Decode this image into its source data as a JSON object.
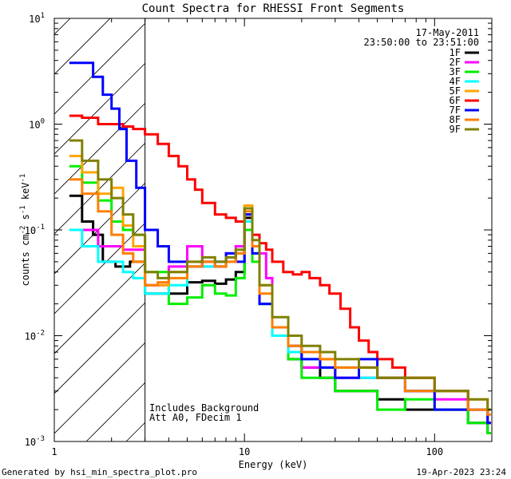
{
  "chart_data": {
    "type": "line",
    "title": "Count Spectra for RHESSI Front Segments",
    "xlabel": "Energy (keV)",
    "ylabel_parts": [
      "counts cm",
      "-2",
      " s",
      "-1",
      " keV",
      "-1"
    ],
    "xscale": "log",
    "yscale": "log",
    "xlim": [
      1,
      200
    ],
    "ylim": [
      0.001,
      10
    ],
    "x_ticks": [
      {
        "value": 1,
        "label": "1"
      },
      {
        "value": 10,
        "label": "10"
      },
      {
        "value": 100,
        "label": "100"
      }
    ],
    "y_ticks": [
      {
        "value": 0.001,
        "base": "10",
        "exp": "-3"
      },
      {
        "value": 0.01,
        "base": "10",
        "exp": "-2"
      },
      {
        "value": 0.1,
        "base": "10",
        "exp": "-1"
      },
      {
        "value": 1,
        "base": "10",
        "exp": "0"
      },
      {
        "value": 10,
        "base": "10",
        "exp": "1"
      }
    ],
    "date": "17-May-2011",
    "time_range": "23:50:00 to 23:51:00",
    "annotations": [
      "Includes Background",
      "Att A0, FDecim 1"
    ],
    "attenuator_cutoff_keV": 3,
    "series": [
      {
        "name": "1F",
        "color": "#000000",
        "points": [
          [
            1.2,
            0.21
          ],
          [
            1.4,
            0.12
          ],
          [
            1.6,
            0.09
          ],
          [
            1.8,
            0.05
          ],
          [
            2.1,
            0.045
          ],
          [
            2.5,
            0.05
          ],
          [
            3,
            0.025
          ],
          [
            4,
            0.025
          ],
          [
            5,
            0.032
          ],
          [
            6,
            0.033
          ],
          [
            7,
            0.031
          ],
          [
            8,
            0.034
          ],
          [
            9,
            0.04
          ],
          [
            10,
            0.13
          ],
          [
            11,
            0.06
          ],
          [
            12,
            0.02
          ],
          [
            14,
            0.01
          ],
          [
            17,
            0.006
          ],
          [
            20,
            0.005
          ],
          [
            25,
            0.004
          ],
          [
            30,
            0.003
          ],
          [
            40,
            0.003
          ],
          [
            50,
            0.0025
          ],
          [
            70,
            0.002
          ],
          [
            100,
            0.002
          ],
          [
            150,
            0.0015
          ],
          [
            190,
            0.0012
          ]
        ]
      },
      {
        "name": "2F",
        "color": "#ff00ff",
        "points": [
          [
            1.2,
            0.1
          ],
          [
            1.4,
            0.1
          ],
          [
            1.7,
            0.07
          ],
          [
            2,
            0.07
          ],
          [
            2.3,
            0.065
          ],
          [
            2.6,
            0.065
          ],
          [
            3,
            0.03
          ],
          [
            3.5,
            0.03
          ],
          [
            4,
            0.045
          ],
          [
            5,
            0.07
          ],
          [
            6,
            0.045
          ],
          [
            7,
            0.05
          ],
          [
            8,
            0.06
          ],
          [
            9,
            0.07
          ],
          [
            10,
            0.14
          ],
          [
            11,
            0.07
          ],
          [
            12,
            0.06
          ],
          [
            13,
            0.035
          ],
          [
            14,
            0.012
          ],
          [
            17,
            0.007
          ],
          [
            20,
            0.005
          ],
          [
            25,
            0.005
          ],
          [
            30,
            0.004
          ],
          [
            40,
            0.004
          ],
          [
            50,
            0.004
          ],
          [
            70,
            0.003
          ],
          [
            100,
            0.0025
          ],
          [
            150,
            0.002
          ],
          [
            190,
            0.0015
          ]
        ]
      },
      {
        "name": "3F",
        "color": "#00ee00",
        "points": [
          [
            1.2,
            0.4
          ],
          [
            1.4,
            0.28
          ],
          [
            1.7,
            0.19
          ],
          [
            2,
            0.12
          ],
          [
            2.3,
            0.1
          ],
          [
            2.6,
            0.09
          ],
          [
            3,
            0.04
          ],
          [
            3.5,
            0.04
          ],
          [
            4,
            0.02
          ],
          [
            5,
            0.023
          ],
          [
            6,
            0.03
          ],
          [
            7,
            0.025
          ],
          [
            8,
            0.024
          ],
          [
            9,
            0.035
          ],
          [
            10,
            0.1
          ],
          [
            11,
            0.05
          ],
          [
            12,
            0.02
          ],
          [
            14,
            0.01
          ],
          [
            17,
            0.006
          ],
          [
            20,
            0.004
          ],
          [
            25,
            0.004
          ],
          [
            30,
            0.003
          ],
          [
            40,
            0.003
          ],
          [
            50,
            0.002
          ],
          [
            70,
            0.0025
          ],
          [
            100,
            0.002
          ],
          [
            150,
            0.0015
          ],
          [
            190,
            0.0012
          ]
        ]
      },
      {
        "name": "4F",
        "color": "#00ffff",
        "points": [
          [
            1.2,
            0.1
          ],
          [
            1.4,
            0.07
          ],
          [
            1.7,
            0.05
          ],
          [
            2,
            0.05
          ],
          [
            2.3,
            0.04
          ],
          [
            2.6,
            0.035
          ],
          [
            3,
            0.025
          ],
          [
            3.5,
            0.025
          ],
          [
            4,
            0.03
          ],
          [
            5,
            0.045
          ],
          [
            6,
            0.045
          ],
          [
            7,
            0.05
          ],
          [
            8,
            0.055
          ],
          [
            9,
            0.06
          ],
          [
            10,
            0.12
          ],
          [
            11,
            0.06
          ],
          [
            12,
            0.02
          ],
          [
            14,
            0.01
          ],
          [
            17,
            0.007
          ],
          [
            20,
            0.006
          ],
          [
            25,
            0.005
          ],
          [
            30,
            0.005
          ],
          [
            40,
            0.004
          ],
          [
            50,
            0.004
          ],
          [
            70,
            0.003
          ],
          [
            100,
            0.003
          ],
          [
            150,
            0.002
          ],
          [
            190,
            0.0015
          ]
        ]
      },
      {
        "name": "5F",
        "color": "#ffa500",
        "points": [
          [
            1.2,
            0.5
          ],
          [
            1.4,
            0.35
          ],
          [
            1.7,
            0.22
          ],
          [
            2,
            0.25
          ],
          [
            2.3,
            0.11
          ],
          [
            2.6,
            0.07
          ],
          [
            3,
            0.03
          ],
          [
            3.5,
            0.03
          ],
          [
            4,
            0.04
          ],
          [
            5,
            0.05
          ],
          [
            6,
            0.05
          ],
          [
            7,
            0.045
          ],
          [
            8,
            0.05
          ],
          [
            9,
            0.06
          ],
          [
            10,
            0.17
          ],
          [
            11,
            0.07
          ],
          [
            12,
            0.03
          ],
          [
            14,
            0.012
          ],
          [
            17,
            0.008
          ],
          [
            20,
            0.007
          ],
          [
            25,
            0.006
          ],
          [
            30,
            0.005
          ],
          [
            40,
            0.005
          ],
          [
            50,
            0.004
          ],
          [
            70,
            0.004
          ],
          [
            100,
            0.003
          ],
          [
            150,
            0.0025
          ],
          [
            190,
            0.002
          ]
        ]
      },
      {
        "name": "6F",
        "color": "#ff0000",
        "points": [
          [
            1.2,
            1.2
          ],
          [
            1.4,
            1.15
          ],
          [
            1.7,
            1.0
          ],
          [
            2,
            1.0
          ],
          [
            2.3,
            0.95
          ],
          [
            2.6,
            0.9
          ],
          [
            3,
            0.8
          ],
          [
            3.5,
            0.65
          ],
          [
            4,
            0.5
          ],
          [
            4.5,
            0.4
          ],
          [
            5,
            0.3
          ],
          [
            5.5,
            0.24
          ],
          [
            6,
            0.18
          ],
          [
            7,
            0.14
          ],
          [
            8,
            0.13
          ],
          [
            9,
            0.12
          ],
          [
            10,
            0.14
          ],
          [
            11,
            0.09
          ],
          [
            12,
            0.075
          ],
          [
            13,
            0.065
          ],
          [
            14,
            0.05
          ],
          [
            16,
            0.04
          ],
          [
            18,
            0.038
          ],
          [
            20,
            0.04
          ],
          [
            22,
            0.035
          ],
          [
            25,
            0.03
          ],
          [
            28,
            0.025
          ],
          [
            32,
            0.018
          ],
          [
            36,
            0.012
          ],
          [
            40,
            0.009
          ],
          [
            45,
            0.007
          ],
          [
            50,
            0.006
          ],
          [
            60,
            0.005
          ],
          [
            70,
            0.004
          ],
          [
            100,
            0.003
          ],
          [
            150,
            0.002
          ],
          [
            190,
            0.0015
          ]
        ]
      },
      {
        "name": "7F",
        "color": "#0000ff",
        "points": [
          [
            1.2,
            3.8
          ],
          [
            1.4,
            3.8
          ],
          [
            1.6,
            2.8
          ],
          [
            1.8,
            1.9
          ],
          [
            2,
            1.4
          ],
          [
            2.2,
            0.9
          ],
          [
            2.4,
            0.45
          ],
          [
            2.7,
            0.25
          ],
          [
            3,
            0.1
          ],
          [
            3.5,
            0.07
          ],
          [
            4,
            0.05
          ],
          [
            5,
            0.045
          ],
          [
            6,
            0.05
          ],
          [
            7,
            0.045
          ],
          [
            8,
            0.06
          ],
          [
            9,
            0.05
          ],
          [
            10,
            0.14
          ],
          [
            11,
            0.06
          ],
          [
            12,
            0.02
          ],
          [
            14,
            0.012
          ],
          [
            17,
            0.008
          ],
          [
            20,
            0.006
          ],
          [
            25,
            0.005
          ],
          [
            30,
            0.004
          ],
          [
            40,
            0.006
          ],
          [
            50,
            0.004
          ],
          [
            70,
            0.003
          ],
          [
            100,
            0.002
          ],
          [
            150,
            0.002
          ],
          [
            190,
            0.0015
          ]
        ]
      },
      {
        "name": "8F",
        "color": "#ff7f00",
        "points": [
          [
            1.2,
            0.3
          ],
          [
            1.4,
            0.22
          ],
          [
            1.7,
            0.15
          ],
          [
            2,
            0.09
          ],
          [
            2.3,
            0.06
          ],
          [
            2.6,
            0.05
          ],
          [
            3,
            0.03
          ],
          [
            3.5,
            0.032
          ],
          [
            4,
            0.035
          ],
          [
            5,
            0.045
          ],
          [
            6,
            0.05
          ],
          [
            7,
            0.045
          ],
          [
            8,
            0.05
          ],
          [
            9,
            0.06
          ],
          [
            10,
            0.15
          ],
          [
            11,
            0.07
          ],
          [
            12,
            0.025
          ],
          [
            14,
            0.012
          ],
          [
            17,
            0.008
          ],
          [
            20,
            0.007
          ],
          [
            25,
            0.006
          ],
          [
            30,
            0.005
          ],
          [
            40,
            0.005
          ],
          [
            50,
            0.004
          ],
          [
            70,
            0.003
          ],
          [
            100,
            0.003
          ],
          [
            150,
            0.002
          ],
          [
            190,
            0.0018
          ]
        ]
      },
      {
        "name": "9F",
        "color": "#808000",
        "points": [
          [
            1.2,
            0.7
          ],
          [
            1.4,
            0.45
          ],
          [
            1.7,
            0.3
          ],
          [
            2,
            0.2
          ],
          [
            2.3,
            0.14
          ],
          [
            2.6,
            0.09
          ],
          [
            3,
            0.04
          ],
          [
            3.5,
            0.035
          ],
          [
            4,
            0.04
          ],
          [
            5,
            0.05
          ],
          [
            6,
            0.055
          ],
          [
            7,
            0.05
          ],
          [
            8,
            0.055
          ],
          [
            9,
            0.065
          ],
          [
            10,
            0.16
          ],
          [
            11,
            0.08
          ],
          [
            12,
            0.03
          ],
          [
            14,
            0.015
          ],
          [
            17,
            0.01
          ],
          [
            20,
            0.008
          ],
          [
            25,
            0.007
          ],
          [
            30,
            0.006
          ],
          [
            40,
            0.005
          ],
          [
            50,
            0.004
          ],
          [
            70,
            0.004
          ],
          [
            100,
            0.003
          ],
          [
            150,
            0.0025
          ],
          [
            190,
            0.002
          ]
        ]
      }
    ]
  },
  "footer": {
    "left": "Generated by hsi_min_spectra_plot.pro",
    "right": "19-Apr-2023 23:24"
  }
}
